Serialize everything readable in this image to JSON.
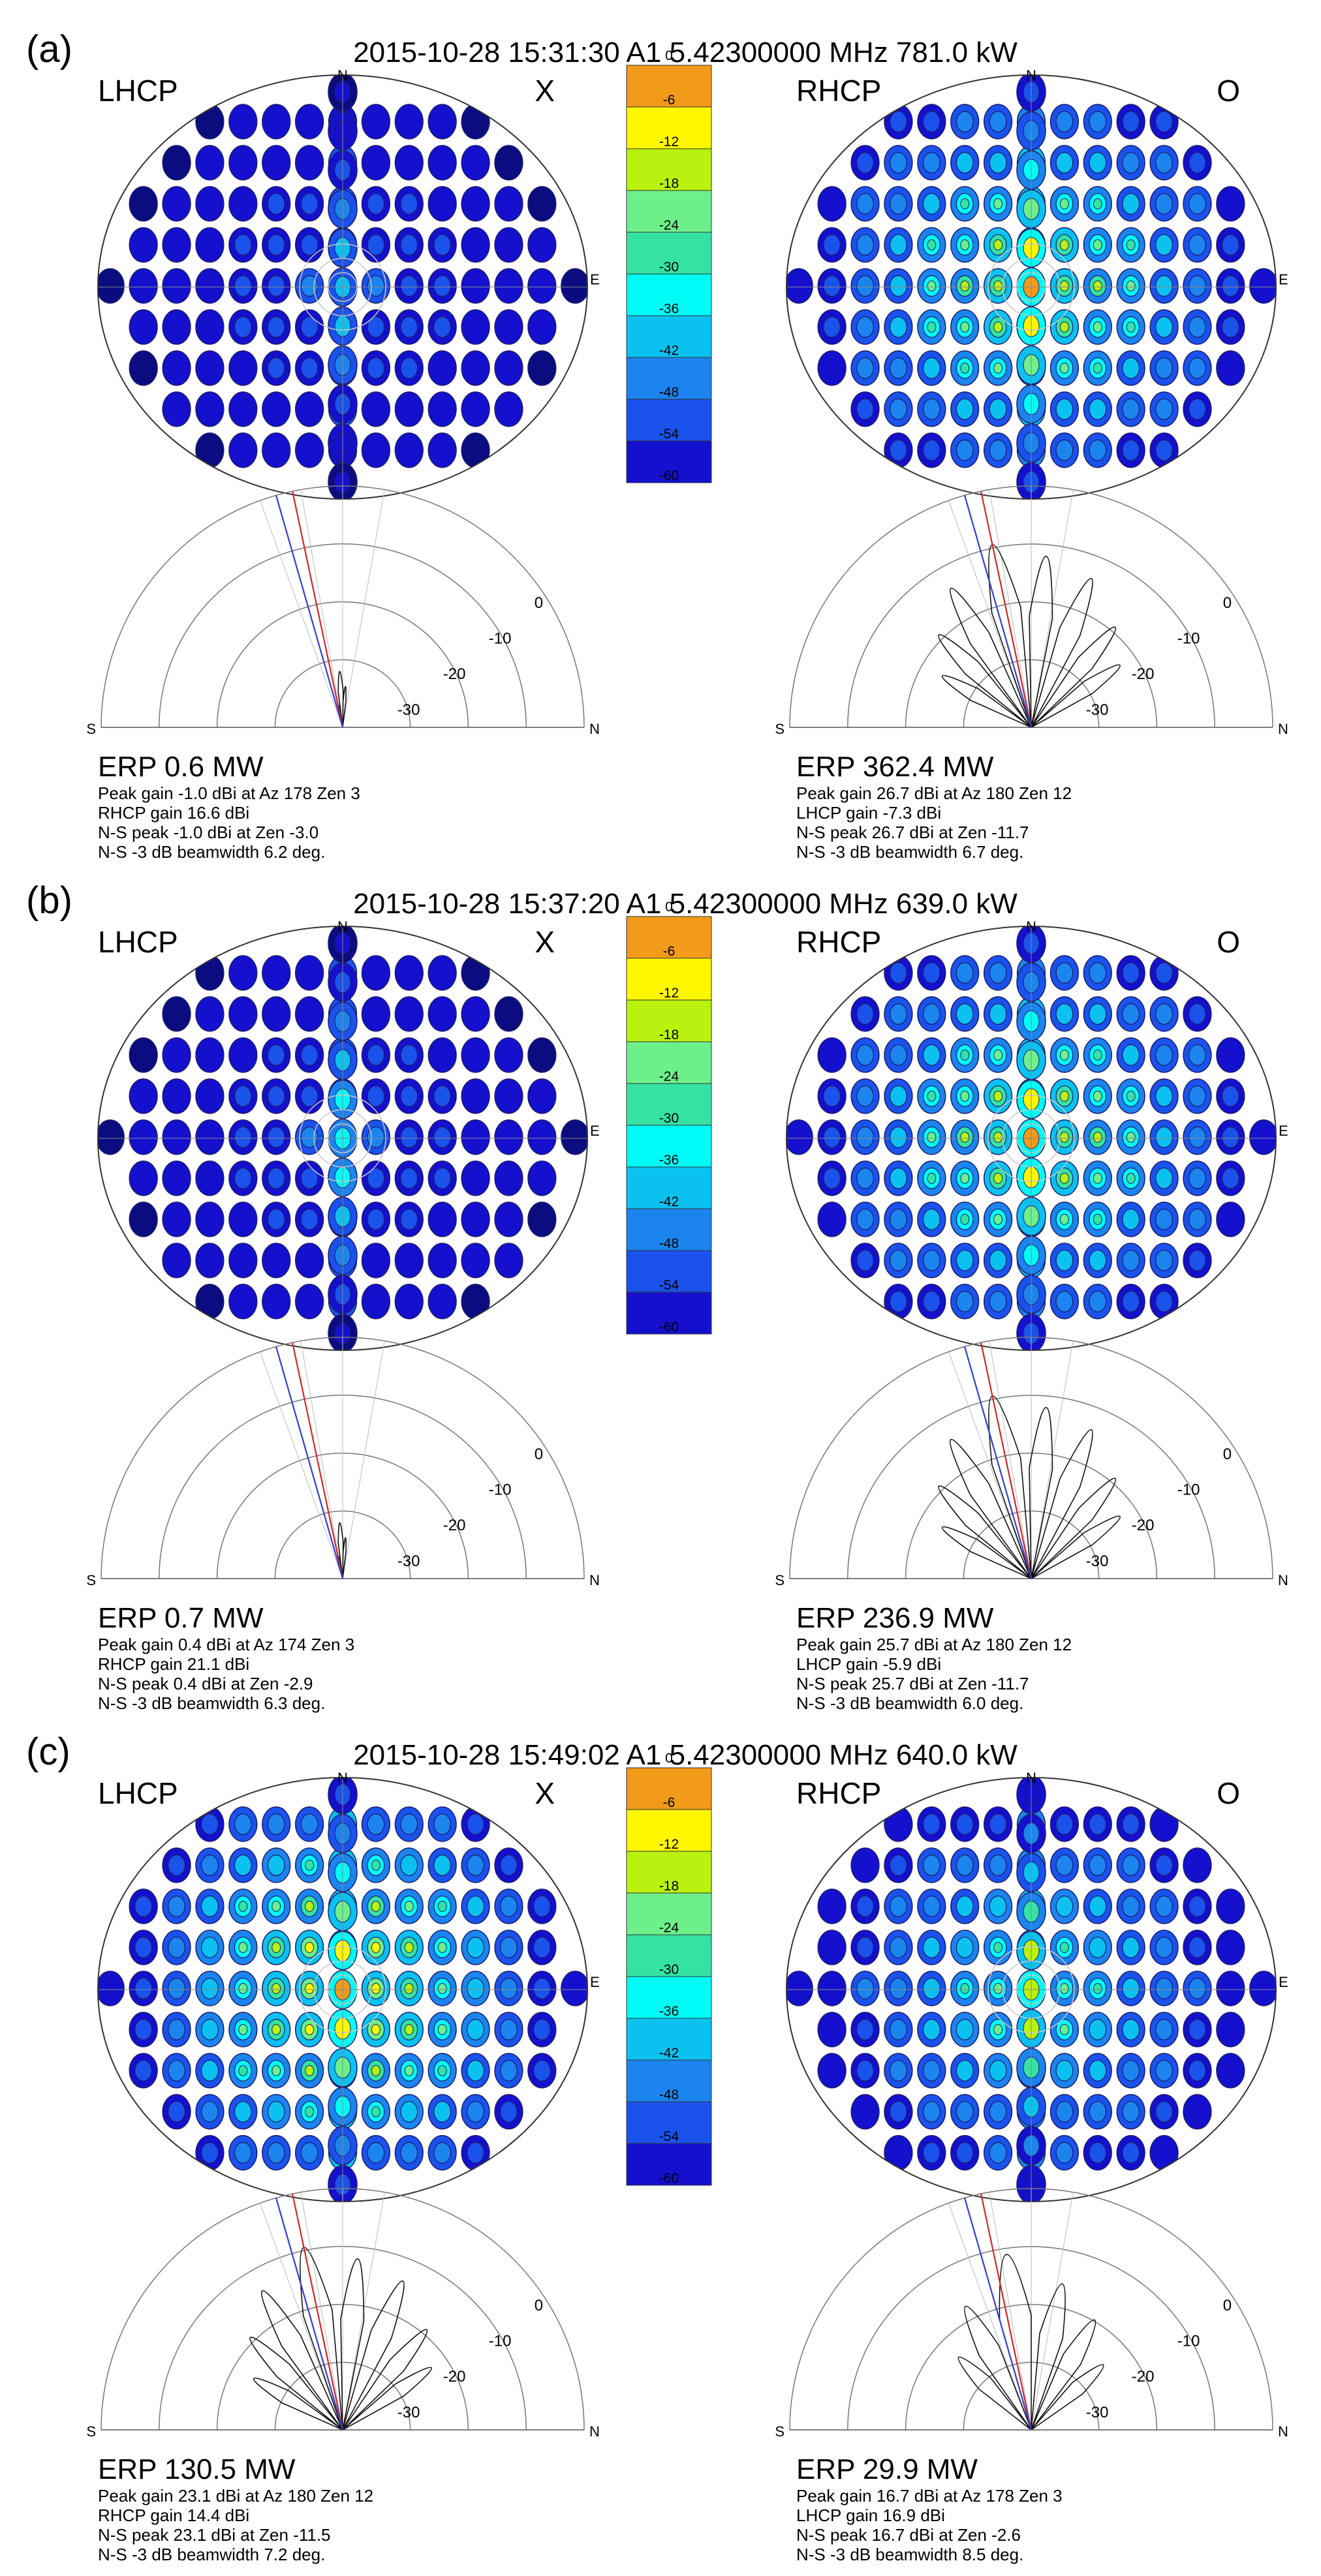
{
  "figure": {
    "colorbar_ticks": [
      "0",
      "-6",
      "-12",
      "-18",
      "-24",
      "-30",
      "-36",
      "-42",
      "-48",
      "-54",
      "-60"
    ],
    "colorbar_colors": [
      "#f29a1a",
      "#fff700",
      "#b9f20e",
      "#6df08a",
      "#34e3a3",
      "#00fbf6",
      "#0ac1f0",
      "#1b84ee",
      "#1a52ec",
      "#1410ce",
      "#0a0c80"
    ],
    "compass": {
      "n": "N",
      "s": "S",
      "e": "E"
    },
    "polar_ticks": [
      "0",
      "-10",
      "-20",
      "-30"
    ]
  },
  "chart_data": [
    {
      "type": "heatmap",
      "panel": "(a)",
      "title": "2015-10-28 15:31:30 A1 5.42300000 MHz 781.0 kW",
      "colorbar_range_db": [
        -60,
        0
      ],
      "left": {
        "polarization": "LHCP",
        "mode": "X",
        "erp": "ERP 0.6 MW",
        "info": [
          "Peak gain -1.0 dBi at Az 178 Zen 3",
          "RHCP gain 16.6 dBi",
          "N-S peak -1.0 dBi at Zen -3.0",
          "N-S -3 dB beamwidth 6.2 deg."
        ],
        "values": {
          "erp_mw": 0.6,
          "peak_gain_dbi": -1.0,
          "az": 178,
          "zen": 3,
          "other_pol_gain_dbi": 16.6,
          "ns_peak_dbi": -1.0,
          "ns_peak_zen": -3.0,
          "beamwidth_deg": 6.2
        }
      },
      "right": {
        "polarization": "RHCP",
        "mode": "O",
        "erp": "ERP 362.4 MW",
        "info": [
          "Peak gain 26.7 dBi at Az 180 Zen 12",
          "LHCP gain -7.3 dBi",
          "N-S peak 26.7 dBi at Zen -11.7",
          "N-S -3 dB beamwidth 6.7 deg."
        ],
        "values": {
          "erp_mw": 362.4,
          "peak_gain_dbi": 26.7,
          "az": 180,
          "zen": 12,
          "other_pol_gain_dbi": -7.3,
          "ns_peak_dbi": 26.7,
          "ns_peak_zen": -11.7,
          "beamwidth_deg": 6.7
        }
      }
    },
    {
      "type": "heatmap",
      "panel": "(b)",
      "title": "2015-10-28 15:37:20 A1 5.42300000 MHz 639.0 kW",
      "colorbar_range_db": [
        -60,
        0
      ],
      "left": {
        "polarization": "LHCP",
        "mode": "X",
        "erp": "ERP 0.7 MW",
        "info": [
          "Peak gain 0.4 dBi at Az 174 Zen 3",
          "RHCP gain 21.1 dBi",
          "N-S peak 0.4 dBi at Zen -2.9",
          "N-S -3 dB beamwidth 6.3 deg."
        ],
        "values": {
          "erp_mw": 0.7,
          "peak_gain_dbi": 0.4,
          "az": 174,
          "zen": 3,
          "other_pol_gain_dbi": 21.1,
          "ns_peak_dbi": 0.4,
          "ns_peak_zen": -2.9,
          "beamwidth_deg": 6.3
        }
      },
      "right": {
        "polarization": "RHCP",
        "mode": "O",
        "erp": "ERP 236.9 MW",
        "info": [
          "Peak gain 25.7 dBi at Az 180 Zen 12",
          "LHCP gain -5.9 dBi",
          "N-S peak 25.7 dBi at Zen -11.7",
          "N-S -3 dB beamwidth 6.0 deg."
        ],
        "values": {
          "erp_mw": 236.9,
          "peak_gain_dbi": 25.7,
          "az": 180,
          "zen": 12,
          "other_pol_gain_dbi": -5.9,
          "ns_peak_dbi": 25.7,
          "ns_peak_zen": -11.7,
          "beamwidth_deg": 6.0
        }
      }
    },
    {
      "type": "heatmap",
      "panel": "(c)",
      "title": "2015-10-28 15:49:02 A1 5.42300000 MHz 640.0 kW",
      "colorbar_range_db": [
        -60,
        0
      ],
      "left": {
        "polarization": "LHCP",
        "mode": "X",
        "erp": "ERP 130.5 MW",
        "info": [
          "Peak gain 23.1 dBi at Az 180 Zen 12",
          "RHCP gain 14.4 dBi",
          "N-S peak 23.1 dBi at Zen -11.5",
          "N-S -3 dB beamwidth 7.2 deg."
        ],
        "values": {
          "erp_mw": 130.5,
          "peak_gain_dbi": 23.1,
          "az": 180,
          "zen": 12,
          "other_pol_gain_dbi": 14.4,
          "ns_peak_dbi": 23.1,
          "ns_peak_zen": -11.5,
          "beamwidth_deg": 7.2
        }
      },
      "right": {
        "polarization": "RHCP",
        "mode": "O",
        "erp": "ERP 29.9 MW",
        "info": [
          "Peak gain 16.7 dBi at Az 178 Zen 3",
          "LHCP gain 16.9 dBi",
          "N-S peak 16.7 dBi at Zen -2.6",
          "N-S -3 dB beamwidth 8.5 deg."
        ],
        "values": {
          "erp_mw": 29.9,
          "peak_gain_dbi": 16.7,
          "az": 178,
          "zen": 3,
          "other_pol_gain_dbi": 16.9,
          "ns_peak_dbi": 16.7,
          "ns_peak_zen": -2.6,
          "beamwidth_deg": 8.5
        }
      }
    }
  ]
}
